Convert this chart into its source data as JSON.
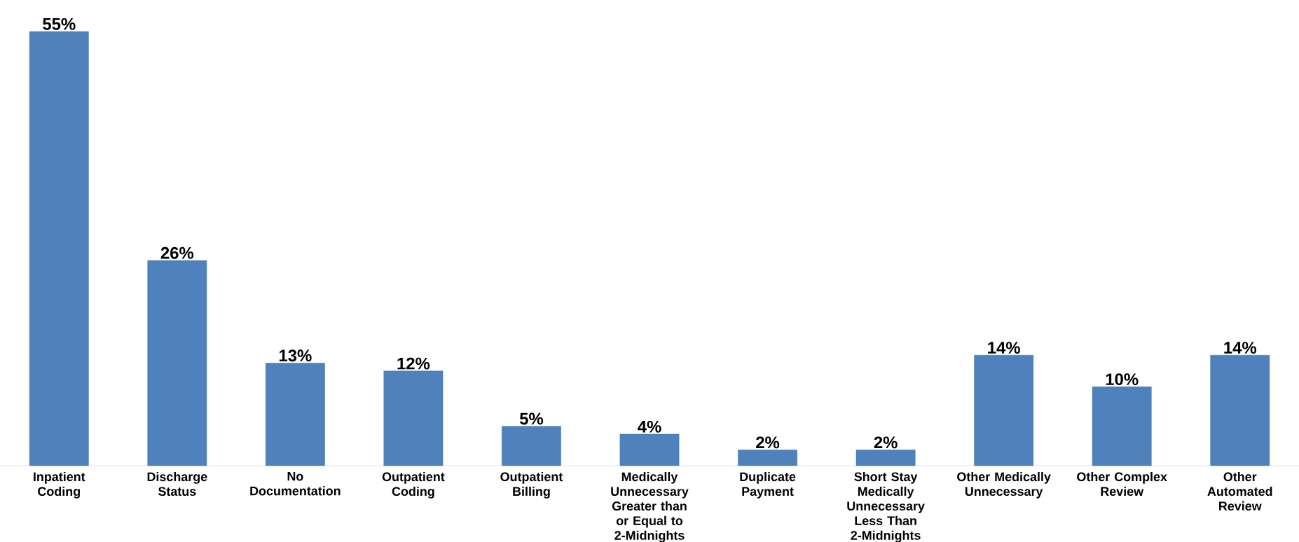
{
  "chart_data": {
    "type": "bar",
    "categories": [
      "Inpatient Coding",
      "Discharge Status",
      "No Documentation",
      "Outpatient Coding",
      "Outpatient Billing",
      "Medically Unnecessary Greater than or Equal to 2-Midnights",
      "Duplicate Payment",
      "Short Stay Medically Unnecessary Less Than 2-Midnights",
      "Other Medically Unnecessary",
      "Other Complex Review",
      "Other Automated Review"
    ],
    "values": [
      55,
      26,
      13,
      12,
      5,
      4,
      2,
      2,
      14,
      10,
      14
    ],
    "value_labels": [
      "55%",
      "26%",
      "13%",
      "12%",
      "5%",
      "4%",
      "2%",
      "2%",
      "14%",
      "10%",
      "14%"
    ],
    "color": "#4f81bd"
  }
}
